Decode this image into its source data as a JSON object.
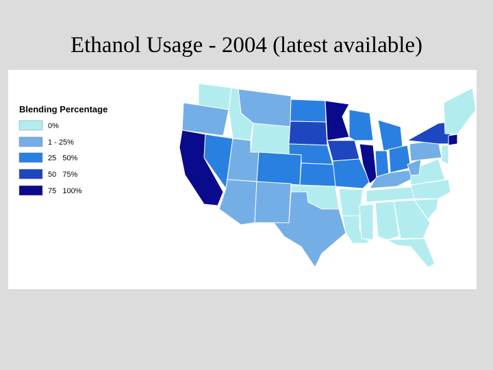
{
  "title": "Ethanol Usage - 2004 (latest available)",
  "legend": {
    "title": "Blending Percentage",
    "items": [
      {
        "label": "0%",
        "color": "#b3ecef"
      },
      {
        "label": "1 - 25%",
        "color": "#74aee6"
      },
      {
        "label": "25   50%",
        "color": "#2a80e0"
      },
      {
        "label": "50   75%",
        "color": "#1e46c0"
      },
      {
        "label": "75   100%",
        "color": "#0a0a8c"
      }
    ]
  }
}
